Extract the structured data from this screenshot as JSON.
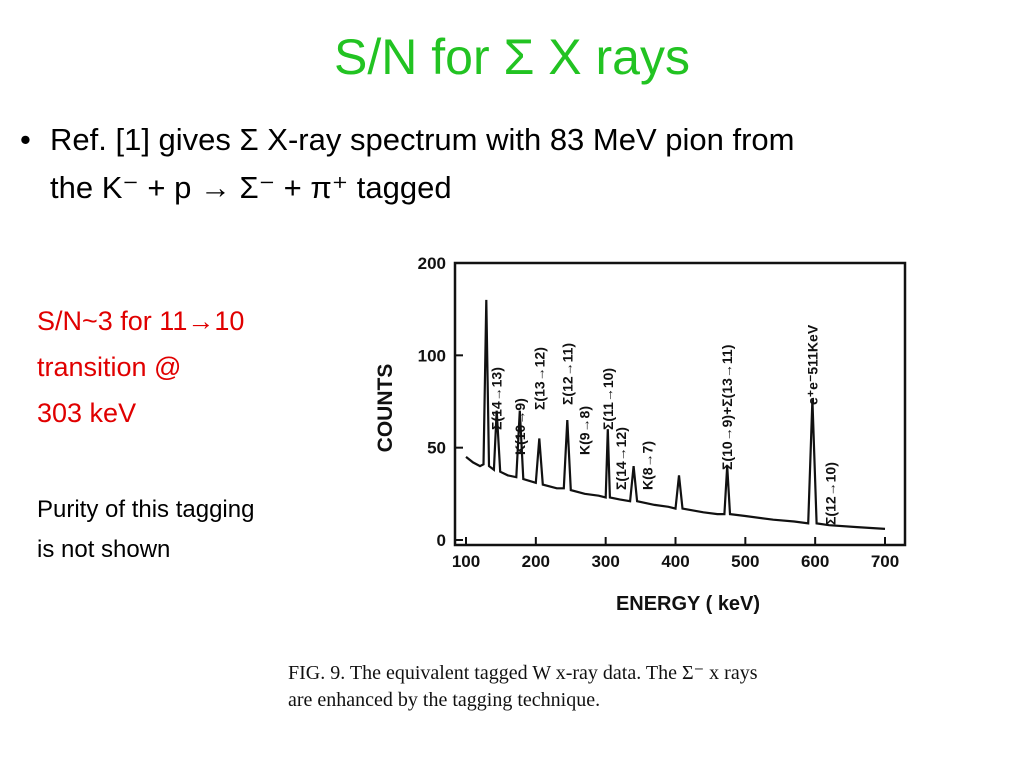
{
  "title": "S/N for Σ X rays",
  "bullet": [
    "Ref. [1] gives Σ X-ray spectrum with 83 MeV pion from",
    "the K⁻ + p → Σ⁻ + π⁺ tagged"
  ],
  "note_red": [
    "S/N~3 for 11→10",
    "transition @",
    "303 keV"
  ],
  "note": [
    "Purity of this tagging",
    "is not shown"
  ],
  "caption": [
    "FIG. 9.  The equivalent tagged W x-ray data.  The Σ⁻ x rays",
    "are enhanced by the tagging technique."
  ],
  "chart_data": {
    "type": "line",
    "x_label": "ENERGY ( keV)",
    "y_label": "COUNTS",
    "color": "#111111",
    "x": [
      100,
      110,
      120,
      125,
      129,
      133,
      140,
      144,
      149,
      160,
      172,
      177,
      182,
      200,
      205,
      210,
      230,
      240,
      245,
      250,
      270,
      290,
      300,
      303,
      306,
      320,
      335,
      340,
      345,
      370,
      390,
      400,
      405,
      410,
      440,
      460,
      470,
      474,
      478,
      500,
      540,
      570,
      590,
      596,
      602,
      620,
      660,
      700
    ],
    "values": [
      45,
      42,
      40,
      41,
      160,
      40,
      38,
      70,
      37,
      35,
      34,
      70,
      33,
      31,
      55,
      30,
      28,
      28,
      65,
      27,
      25,
      24,
      23,
      60,
      23,
      22,
      21,
      40,
      21,
      19,
      18,
      17,
      35,
      17,
      15,
      14,
      14,
      40,
      14,
      13,
      11,
      10,
      9,
      76,
      9,
      8,
      7,
      6
    ],
    "xlim": [
      100,
      700
    ],
    "xticks": [
      100,
      200,
      300,
      400,
      500,
      600,
      700
    ],
    "ylim": [
      0,
      200
    ],
    "yticks": [
      0,
      50,
      100,
      200
    ],
    "annotations": [
      {
        "x": 144,
        "text": "Σ(14→13)"
      },
      {
        "x": 177,
        "text": "K(10→9)"
      },
      {
        "x": 205,
        "text": "Σ(13→12)"
      },
      {
        "x": 245,
        "text": "Σ(12→11)"
      },
      {
        "x": 270,
        "text": "K(9→8)"
      },
      {
        "x": 303,
        "text": "Σ(11→10)"
      },
      {
        "x": 322,
        "text": "Σ(14→12)"
      },
      {
        "x": 360,
        "text": "K(8→7)"
      },
      {
        "x": 474,
        "text": "Σ(10→9)+Σ(13→11)"
      },
      {
        "x": 596,
        "text": "e⁺e⁻511KeV"
      },
      {
        "x": 622,
        "text": "Σ(12→10)"
      }
    ]
  }
}
